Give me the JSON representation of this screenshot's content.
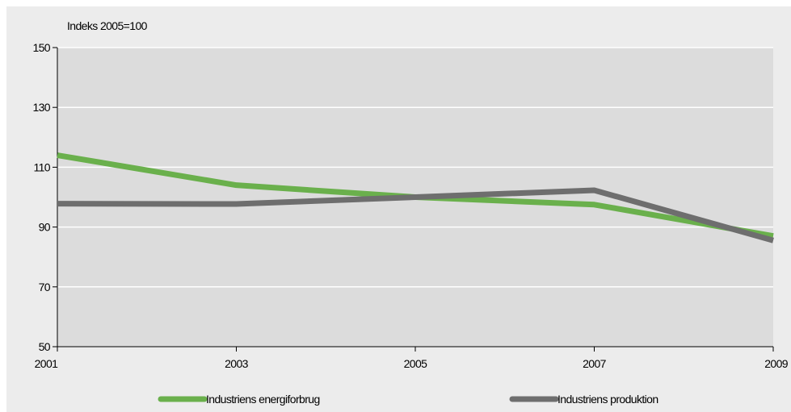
{
  "chart_data": {
    "type": "line",
    "unit_label": "Indeks 2005=100",
    "x": [
      "2001",
      "2003",
      "2005",
      "2007",
      "2009"
    ],
    "ylim": [
      50,
      150
    ],
    "y_ticks": [
      "50",
      "70",
      "90",
      "110",
      "130",
      "150"
    ],
    "grid": true,
    "legend_position": "bottom",
    "series": [
      {
        "name": "Industriens energiforbrug",
        "color": "#6ab04c",
        "values": [
          114,
          104,
          100,
          97.5,
          87
        ]
      },
      {
        "name": "Industriens produktion",
        "color": "#6e6e6e",
        "values": [
          97.8,
          97.7,
          100,
          102.3,
          85.5
        ]
      }
    ],
    "colors": {
      "plot_background": "#dcdcdc",
      "page_background": "#ececec",
      "gridline": "#ffffff"
    }
  }
}
